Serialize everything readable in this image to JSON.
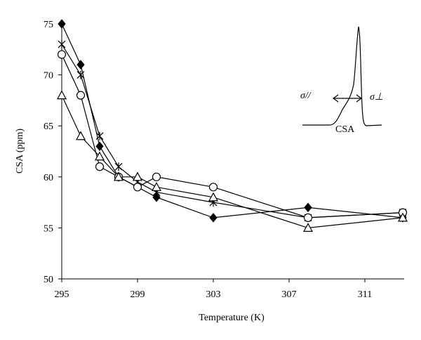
{
  "chart_data": {
    "type": "line",
    "x_label": "Temperature (K)",
    "y_label": "CSA (ppm)",
    "xlim": [
      295,
      313
    ],
    "xticks": [
      295,
      299,
      303,
      307,
      311
    ],
    "ylim": [
      50,
      75
    ],
    "yticks": [
      50,
      55,
      60,
      65,
      70,
      75
    ],
    "grid": false,
    "series": [
      {
        "marker": "diamond",
        "color": "#000000",
        "x": [
          295,
          296,
          297,
          298,
          300,
          303,
          308,
          313
        ],
        "values": [
          75,
          71,
          63,
          60,
          58,
          56,
          57,
          56
        ]
      },
      {
        "marker": "star",
        "color": "#000000",
        "x": [
          295,
          296,
          297,
          298,
          299,
          300,
          303,
          308,
          313
        ],
        "values": [
          73,
          70,
          64,
          61,
          59.5,
          58.5,
          57.5,
          56,
          56.5
        ]
      },
      {
        "marker": "circle",
        "color": "#000000",
        "x": [
          295,
          296,
          297,
          298,
          299,
          300,
          303,
          308,
          313
        ],
        "values": [
          72,
          68,
          61,
          60,
          59,
          60,
          59,
          56,
          56.5
        ]
      },
      {
        "marker": "triangle",
        "color": "#000000",
        "x": [
          295,
          296,
          297,
          298,
          299,
          300,
          303,
          308,
          313
        ],
        "values": [
          68,
          64,
          62,
          60,
          60,
          59,
          58,
          55,
          56
        ]
      }
    ],
    "inset": {
      "left_label": "σ//",
      "right_label": "σ⊥",
      "label": "CSA"
    }
  }
}
